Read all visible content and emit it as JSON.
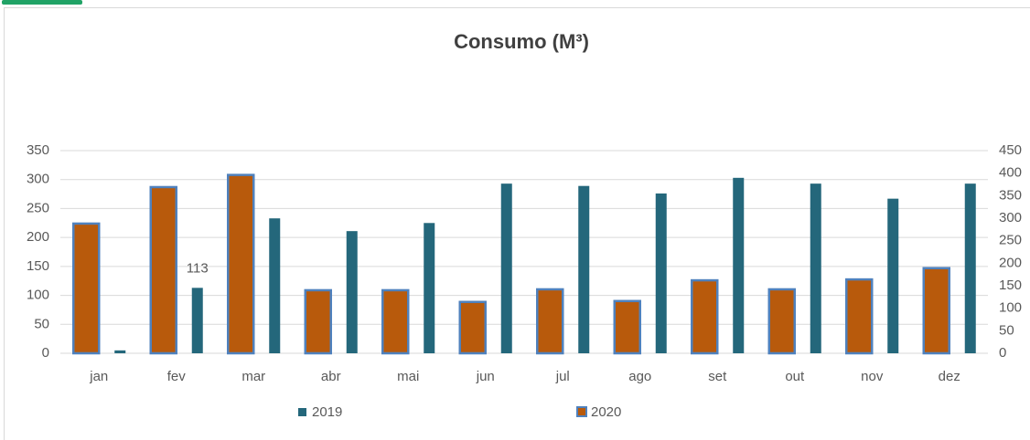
{
  "chart_data": {
    "type": "bar",
    "title": "Consumo (M³)",
    "categories": [
      "jan",
      "fev",
      "mar",
      "abr",
      "mai",
      "jun",
      "jul",
      "ago",
      "set",
      "out",
      "nov",
      "dez"
    ],
    "series": [
      {
        "name": "2019",
        "color": "#24677b",
        "values": [
          5,
          113,
          233,
          211,
          225,
          293,
          289,
          276,
          303,
          293,
          267,
          293
        ]
      },
      {
        "name": "2020",
        "color": "#b85a0c",
        "axis": "y2",
        "values": [
          288,
          369,
          396,
          140,
          140,
          114,
          142,
          116,
          162,
          142,
          164,
          189
        ]
      }
    ],
    "ylim": [
      0,
      350
    ],
    "yticks": [
      0,
      50,
      100,
      150,
      200,
      250,
      300,
      350
    ],
    "y2lim": [
      0,
      450
    ],
    "y2ticks": [
      0,
      50,
      100,
      150,
      200,
      250,
      300,
      350,
      400,
      450
    ],
    "grid": true,
    "legend": "bottom"
  }
}
